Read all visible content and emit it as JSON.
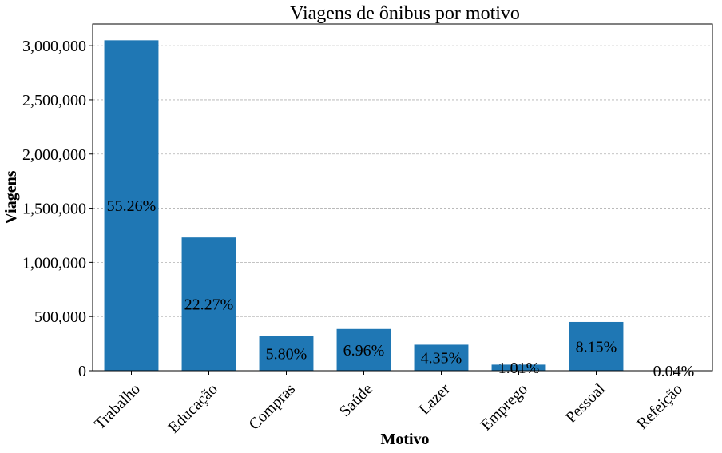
{
  "chart_data": {
    "type": "bar",
    "title": "Viagens de ônibus por motivo",
    "xlabel": "Motivo",
    "ylabel": "Viagens",
    "categories": [
      "Trabalho",
      "Educação",
      "Compras",
      "Saúde",
      "Lazer",
      "Emprego",
      "Pessoal",
      "Refeição"
    ],
    "values": [
      3050000,
      1230000,
      320000,
      385000,
      240000,
      56000,
      450000,
      2200
    ],
    "data_labels": [
      "55.26%",
      "22.27%",
      "5.80%",
      "6.96%",
      "4.35%",
      "1.01%",
      "8.15%",
      "0.04%"
    ],
    "yticks": [
      0,
      500000,
      1000000,
      1500000,
      2000000,
      2500000,
      3000000
    ],
    "ytick_labels": [
      "0",
      "500,000",
      "1,000,000",
      "1,500,000",
      "2,000,000",
      "2,500,000",
      "3,000,000"
    ],
    "ylim": [
      0,
      3200000
    ],
    "grid": "horizontal dashed",
    "bar_color": "#1f77b4",
    "grid_color": "#b0b0b0"
  }
}
